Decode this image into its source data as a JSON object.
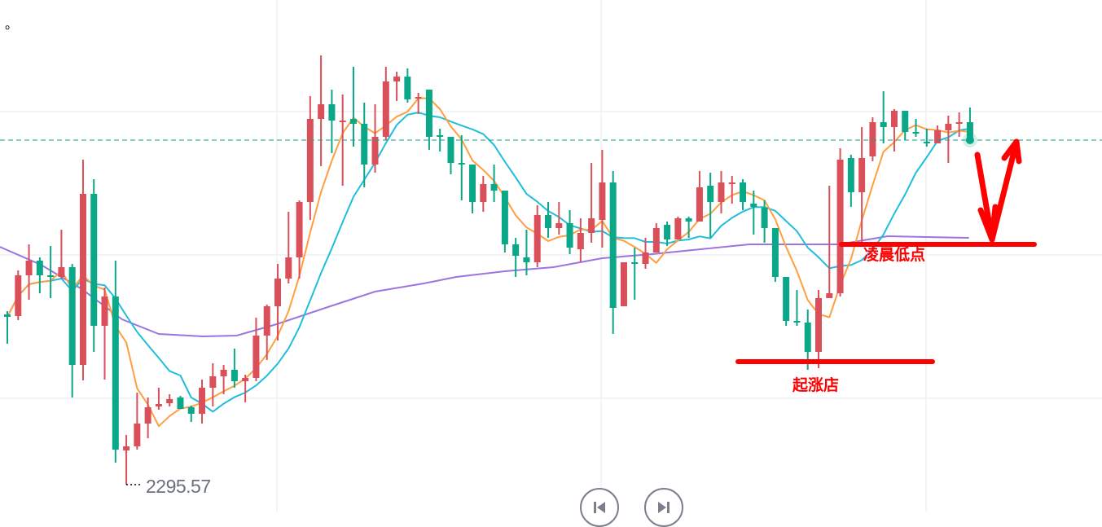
{
  "corner_mark": "。",
  "low_label": "2295.57",
  "last_price": 2337.87,
  "annotations": {
    "rise_point": "起涨店",
    "dawn_low": "凌晨低点"
  },
  "controls": {
    "prev_icon": "skip-back-icon",
    "next_icon": "skip-forward-icon"
  },
  "colors": {
    "up": "#d9505b",
    "down": "#0aa788",
    "ma_short": "#ff9f40",
    "ma_mid": "#1fbedc",
    "ma_long": "#9b75e0",
    "annotation": "#ff0000",
    "last_price_line": "#0aa788",
    "grid": "#f0f0f4"
  },
  "chart_data": {
    "type": "candlestick",
    "title": "",
    "ylim": [
      2292.3,
      2355.07
    ],
    "grid": true,
    "price_lines": [
      2341.37,
      2323.77,
      2306.17
    ],
    "candles_ohlc": [
      [
        2316.47,
        2316.87,
        2312.87,
        2316.17
      ],
      [
        2316.27,
        2321.87,
        2315.77,
        2321.27
      ],
      [
        2321.27,
        2325.07,
        2318.27,
        2323.07
      ],
      [
        2323.07,
        2323.47,
        2319.07,
        2321.27
      ],
      [
        2321.27,
        2324.87,
        2318.47,
        2321.17
      ],
      [
        2321.07,
        2326.87,
        2320.87,
        2322.27
      ],
      [
        2322.27,
        2322.67,
        2306.27,
        2310.27
      ],
      [
        2310.27,
        2335.47,
        2308.37,
        2331.27
      ],
      [
        2331.27,
        2333.07,
        2311.87,
        2315.07
      ],
      [
        2315.07,
        2319.77,
        2308.47,
        2318.67
      ],
      [
        2318.67,
        2323.07,
        2298.27,
        2299.87
      ],
      [
        2299.77,
        2301.67,
        2295.57,
        2300.27
      ],
      [
        2300.27,
        2306.87,
        2299.87,
        2303.07
      ],
      [
        2303.07,
        2306.27,
        2301.27,
        2305.07
      ],
      [
        2305.17,
        2307.47,
        2304.77,
        2305.47
      ],
      [
        2305.57,
        2306.67,
        2305.17,
        2306.07
      ],
      [
        2306.27,
        2306.47,
        2304.87,
        2304.87
      ],
      [
        2305.07,
        2305.27,
        2303.27,
        2304.27
      ],
      [
        2304.27,
        2308.47,
        2303.07,
        2307.47
      ],
      [
        2307.47,
        2310.47,
        2305.17,
        2308.87
      ],
      [
        2308.87,
        2310.27,
        2306.67,
        2309.67
      ],
      [
        2309.67,
        2312.27,
        2307.47,
        2308.27
      ],
      [
        2308.27,
        2309.07,
        2305.67,
        2308.67
      ],
      [
        2308.67,
        2316.07,
        2308.27,
        2313.87
      ],
      [
        2313.87,
        2317.67,
        2310.87,
        2317.47
      ],
      [
        2317.47,
        2322.67,
        2313.27,
        2320.87
      ],
      [
        2320.87,
        2329.07,
        2320.27,
        2323.47
      ],
      [
        2323.47,
        2330.47,
        2320.87,
        2330.27
      ],
      [
        2330.27,
        2343.27,
        2328.07,
        2340.47
      ],
      [
        2340.47,
        2348.27,
        2334.67,
        2342.27
      ],
      [
        2342.27,
        2344.07,
        2336.27,
        2340.27
      ],
      [
        2340.07,
        2343.47,
        2332.27,
        2340.27
      ],
      [
        2340.47,
        2346.87,
        2337.07,
        2339.87
      ],
      [
        2339.87,
        2342.47,
        2332.07,
        2334.87
      ],
      [
        2334.87,
        2342.27,
        2333.87,
        2338.27
      ],
      [
        2338.27,
        2346.87,
        2337.87,
        2345.07
      ],
      [
        2345.07,
        2346.27,
        2342.67,
        2345.67
      ],
      [
        2345.67,
        2346.67,
        2342.47,
        2342.87
      ],
      [
        2343.07,
        2343.67,
        2341.07,
        2343.17
      ],
      [
        2344.07,
        2344.07,
        2336.67,
        2338.27
      ],
      [
        2338.47,
        2339.27,
        2336.47,
        2338.37
      ],
      [
        2338.27,
        2338.27,
        2333.67,
        2335.07
      ],
      [
        2335.07,
        2338.47,
        2330.47,
        2334.87
      ],
      [
        2334.87,
        2334.87,
        2328.87,
        2330.27
      ],
      [
        2330.27,
        2333.47,
        2329.07,
        2332.47
      ],
      [
        2332.47,
        2334.87,
        2330.27,
        2331.67
      ],
      [
        2331.67,
        2331.67,
        2324.07,
        2325.07
      ],
      [
        2325.07,
        2325.87,
        2321.07,
        2323.67
      ],
      [
        2323.47,
        2326.87,
        2321.27,
        2322.87
      ],
      [
        2322.87,
        2329.87,
        2322.27,
        2328.67
      ],
      [
        2328.67,
        2330.27,
        2325.87,
        2327.07
      ],
      [
        2327.07,
        2330.27,
        2326.27,
        2327.67
      ],
      [
        2327.67,
        2329.27,
        2323.87,
        2324.67
      ],
      [
        2324.47,
        2328.27,
        2322.87,
        2326.47
      ],
      [
        2326.47,
        2335.07,
        2325.27,
        2328.27
      ],
      [
        2328.07,
        2336.67,
        2324.67,
        2332.67
      ],
      [
        2332.67,
        2334.07,
        2314.07,
        2317.27
      ],
      [
        2317.47,
        2322.87,
        2317.47,
        2322.87
      ],
      [
        2322.87,
        2324.67,
        2318.27,
        2322.67
      ],
      [
        2322.67,
        2325.87,
        2322.07,
        2324.07
      ],
      [
        2324.07,
        2327.67,
        2324.07,
        2327.07
      ],
      [
        2327.47,
        2327.87,
        2324.87,
        2325.67
      ],
      [
        2325.67,
        2328.47,
        2325.67,
        2328.27
      ],
      [
        2328.27,
        2328.47,
        2325.87,
        2327.87
      ],
      [
        2327.87,
        2334.07,
        2327.87,
        2332.07
      ],
      [
        2332.27,
        2333.87,
        2325.87,
        2330.27
      ],
      [
        2330.27,
        2334.07,
        2328.87,
        2332.67
      ],
      [
        2332.47,
        2333.47,
        2330.07,
        2332.67
      ],
      [
        2332.67,
        2333.07,
        2329.27,
        2330.27
      ],
      [
        2330.07,
        2331.67,
        2326.27,
        2329.67
      ],
      [
        2329.57,
        2330.47,
        2325.27,
        2327.07
      ],
      [
        2327.07,
        2327.07,
        2320.47,
        2321.07
      ],
      [
        2321.07,
        2321.07,
        2315.07,
        2315.67
      ],
      [
        2315.67,
        2319.47,
        2315.07,
        2315.47
      ],
      [
        2315.47,
        2317.07,
        2309.67,
        2311.87
      ],
      [
        2311.87,
        2319.47,
        2309.87,
        2318.47
      ],
      [
        2318.47,
        2332.27,
        2318.47,
        2319.07
      ],
      [
        2319.07,
        2336.87,
        2318.67,
        2335.47
      ],
      [
        2335.67,
        2336.07,
        2329.67,
        2331.47
      ],
      [
        2331.47,
        2339.47,
        2325.07,
        2335.67
      ],
      [
        2335.87,
        2340.67,
        2335.27,
        2340.07
      ],
      [
        2340.07,
        2343.87,
        2337.47,
        2339.47
      ],
      [
        2339.47,
        2341.67,
        2336.47,
        2341.47
      ],
      [
        2341.47,
        2341.47,
        2337.87,
        2338.87
      ],
      [
        2338.87,
        2340.47,
        2338.27,
        2338.67
      ],
      [
        2337.67,
        2339.27,
        2337.07,
        2337.47
      ],
      [
        2337.47,
        2339.67,
        2337.47,
        2339.07
      ],
      [
        2339.07,
        2340.87,
        2335.07,
        2339.87
      ],
      [
        2339.87,
        2341.27,
        2338.27,
        2340.07
      ],
      [
        2340.07,
        2341.87,
        2337.87,
        2337.87
      ]
    ],
    "ma_short_period": 5,
    "ma_mid_period": 10,
    "ma_long_anchors": [
      [
        -0.7,
        2324.77
      ],
      [
        3.1,
        2322.57
      ],
      [
        6.9,
        2319.57
      ],
      [
        10.6,
        2315.87
      ],
      [
        14,
        2314.07
      ],
      [
        18.1,
        2313.77
      ],
      [
        21.2,
        2313.87
      ],
      [
        24.9,
        2315.27
      ],
      [
        29.4,
        2317.27
      ],
      [
        34,
        2319.27
      ],
      [
        38.5,
        2320.27
      ],
      [
        41.5,
        2321.07
      ],
      [
        46,
        2321.77
      ],
      [
        50.5,
        2322.27
      ],
      [
        55,
        2323.37
      ],
      [
        59.6,
        2323.87
      ],
      [
        64.1,
        2324.47
      ],
      [
        68.6,
        2325.07
      ],
      [
        73.1,
        2325.07
      ],
      [
        76.9,
        2325.07
      ],
      [
        81.4,
        2326.07
      ],
      [
        88.9,
        2325.87
      ]
    ],
    "lowest_low": 2295.57
  }
}
